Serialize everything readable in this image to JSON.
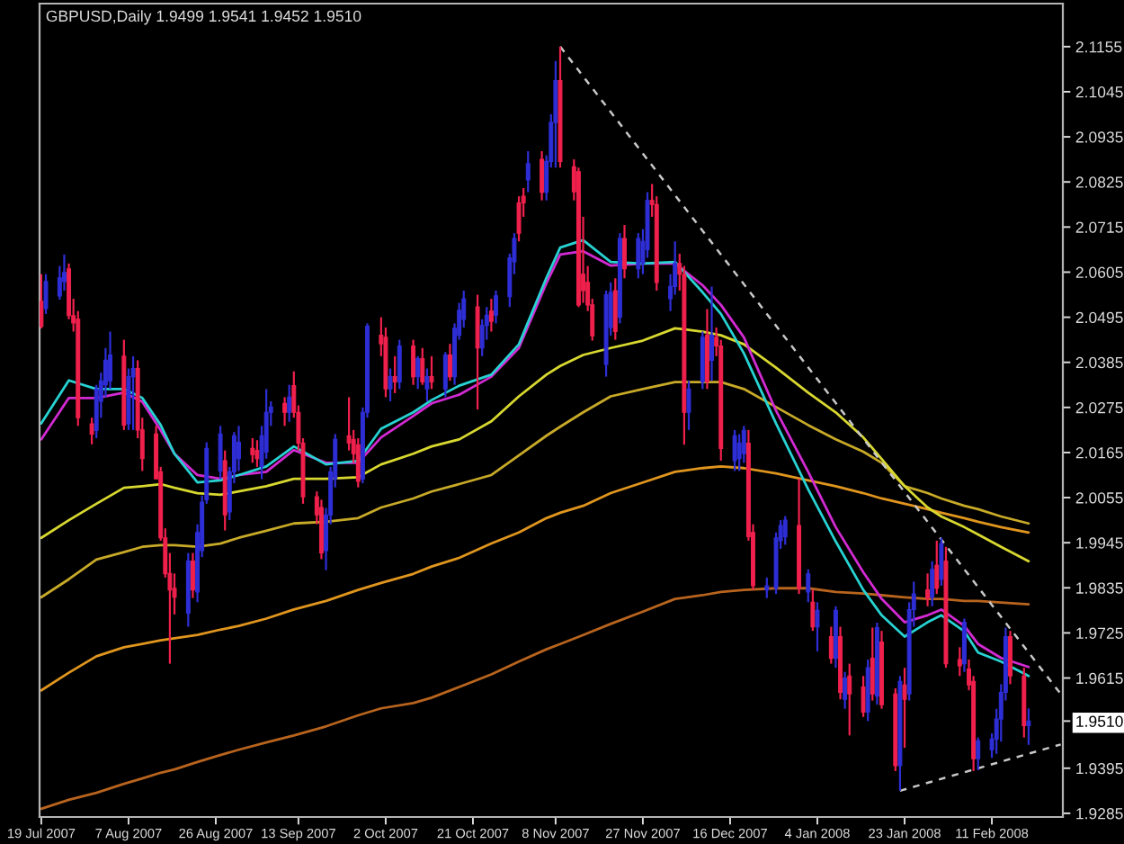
{
  "chart_data": {
    "type": "candlestick",
    "title": "GBPUSD,Daily 1.9499 1.9541 1.9452 1.9510",
    "x": [
      "2007-07-19",
      "2007-07-20",
      "2007-07-23",
      "2007-07-24",
      "2007-07-25",
      "2007-07-26",
      "2007-07-27",
      "2007-07-30",
      "2007-07-31",
      "2007-08-01",
      "2007-08-02",
      "2007-08-03",
      "2007-08-06",
      "2007-08-07",
      "2007-08-08",
      "2007-08-09",
      "2007-08-10",
      "2007-08-13",
      "2007-08-14",
      "2007-08-15",
      "2007-08-16",
      "2007-08-17",
      "2007-08-20",
      "2007-08-21",
      "2007-08-22",
      "2007-08-23",
      "2007-08-24",
      "2007-08-27",
      "2007-08-28",
      "2007-08-29",
      "2007-08-30",
      "2007-08-31",
      "2007-09-03",
      "2007-09-04",
      "2007-09-05",
      "2007-09-06",
      "2007-09-07",
      "2007-09-10",
      "2007-09-11",
      "2007-09-12",
      "2007-09-13",
      "2007-09-14",
      "2007-09-17",
      "2007-09-18",
      "2007-09-19",
      "2007-09-20",
      "2007-09-21",
      "2007-09-24",
      "2007-09-25",
      "2007-09-26",
      "2007-09-27",
      "2007-09-28",
      "2007-10-01",
      "2007-10-02",
      "2007-10-03",
      "2007-10-04",
      "2007-10-05",
      "2007-10-08",
      "2007-10-09",
      "2007-10-10",
      "2007-10-11",
      "2007-10-12",
      "2007-10-15",
      "2007-10-16",
      "2007-10-17",
      "2007-10-18",
      "2007-10-19",
      "2007-10-22",
      "2007-10-23",
      "2007-10-24",
      "2007-10-25",
      "2007-10-26",
      "2007-10-29",
      "2007-10-30",
      "2007-10-31",
      "2007-11-01",
      "2007-11-02",
      "2007-11-05",
      "2007-11-06",
      "2007-11-07",
      "2007-11-08",
      "2007-11-09",
      "2007-11-12",
      "2007-11-13",
      "2007-11-14",
      "2007-11-15",
      "2007-11-16",
      "2007-11-19",
      "2007-11-20",
      "2007-11-21",
      "2007-11-22",
      "2007-11-23",
      "2007-11-26",
      "2007-11-27",
      "2007-11-28",
      "2007-11-29",
      "2007-11-30",
      "2007-12-03",
      "2007-12-04",
      "2007-12-05",
      "2007-12-06",
      "2007-12-07",
      "2007-12-10",
      "2007-12-11",
      "2007-12-12",
      "2007-12-13",
      "2007-12-14",
      "2007-12-17",
      "2007-12-18",
      "2007-12-19",
      "2007-12-20",
      "2007-12-21",
      "2007-12-24",
      "2007-12-26",
      "2007-12-27",
      "2007-12-28",
      "2007-12-31",
      "2008-01-02",
      "2008-01-03",
      "2008-01-04",
      "2008-01-07",
      "2008-01-08",
      "2008-01-09",
      "2008-01-10",
      "2008-01-11",
      "2008-01-14",
      "2008-01-15",
      "2008-01-16",
      "2008-01-17",
      "2008-01-18",
      "2008-01-21",
      "2008-01-22",
      "2008-01-23",
      "2008-01-24",
      "2008-01-25",
      "2008-01-28",
      "2008-01-29",
      "2008-01-30",
      "2008-01-31",
      "2008-02-01",
      "2008-02-04",
      "2008-02-05",
      "2008-02-06",
      "2008-02-07",
      "2008-02-08",
      "2008-02-11",
      "2008-02-12",
      "2008-02-13",
      "2008-02-14",
      "2008-02-15",
      "2008-02-18",
      "2008-02-19"
    ],
    "ohlc": [
      [
        2.0534,
        2.06,
        2.0468,
        2.0473
      ],
      [
        2.0516,
        2.06,
        2.0503,
        2.0582
      ],
      [
        2.0547,
        2.062,
        2.0538,
        2.0591
      ],
      [
        2.0582,
        2.0648,
        2.056,
        2.0604
      ],
      [
        2.0613,
        2.0626,
        2.049,
        2.0499
      ],
      [
        2.0499,
        2.054,
        2.046,
        2.0481
      ],
      [
        2.049,
        2.051,
        2.023,
        2.025
      ],
      [
        2.0235,
        2.025,
        2.0185,
        2.021
      ],
      [
        2.0219,
        2.033,
        2.02,
        2.032
      ],
      [
        2.029,
        2.036,
        2.025,
        2.034
      ],
      [
        2.033,
        2.042,
        2.03,
        2.039
      ],
      [
        2.034,
        2.046,
        2.032,
        2.0403
      ],
      [
        2.04,
        2.044,
        2.022,
        2.0232
      ],
      [
        2.0235,
        2.037,
        2.022,
        2.035
      ],
      [
        2.035,
        2.04,
        2.022,
        2.037
      ],
      [
        2.037,
        2.039,
        2.02,
        2.022
      ],
      [
        2.022,
        2.025,
        2.012,
        2.015
      ],
      [
        2.021,
        2.023,
        2.01,
        2.0101
      ],
      [
        2.0118,
        2.013,
        1.995,
        1.9957
      ],
      [
        1.9957,
        1.998,
        1.986,
        1.9869
      ],
      [
        1.987,
        1.992,
        1.965,
        1.983
      ],
      [
        1.9834,
        1.987,
        1.977,
        1.9812
      ],
      [
        1.9773,
        1.992,
        1.974,
        1.99
      ],
      [
        1.99,
        1.992,
        1.981,
        1.983
      ],
      [
        1.9825,
        1.999,
        1.98,
        1.997
      ],
      [
        1.9926,
        2.006,
        1.991,
        2.0044
      ],
      [
        2.005,
        2.019,
        2.004,
        2.0175
      ],
      [
        2.012,
        2.023,
        2.01,
        2.021
      ],
      [
        2.0145,
        2.017,
        1.9975,
        2.0013
      ],
      [
        2.002,
        2.013,
        2.0,
        2.0118
      ],
      [
        2.0118,
        2.0215,
        2.009,
        2.0206
      ],
      [
        2.015,
        2.023,
        2.012,
        2.019
      ],
      [
        2.0175,
        2.02,
        2.014,
        2.016
      ],
      [
        2.017,
        2.0195,
        2.013,
        2.015
      ],
      [
        2.0131,
        2.023,
        2.01,
        2.0206
      ],
      [
        2.0166,
        2.032,
        2.015,
        2.0263
      ],
      [
        2.0263,
        2.029,
        2.023,
        2.0276
      ],
      [
        2.0285,
        2.03,
        2.023,
        2.0263
      ],
      [
        2.0263,
        2.033,
        2.024,
        2.03
      ],
      [
        2.0328,
        2.0363,
        2.025,
        2.0263
      ],
      [
        2.0263,
        2.028,
        2.017,
        2.0188
      ],
      [
        2.0188,
        2.02,
        2.004,
        2.0057
      ],
      [
        2.0057,
        2.007,
        1.999,
        2.0013
      ],
      [
        2.0031,
        2.005,
        1.9905,
        1.992
      ],
      [
        1.9926,
        2.003,
        1.9878,
        2.0013
      ],
      [
        2.0013,
        2.013,
        1.999,
        2.0118
      ],
      [
        2.0101,
        2.021,
        2.008,
        2.0197
      ],
      [
        2.0206,
        2.03,
        2.017,
        2.0188
      ],
      [
        2.0197,
        2.022,
        2.014,
        2.0162
      ],
      [
        2.0184,
        2.02,
        2.008,
        2.0095
      ],
      [
        2.01,
        2.0275,
        2.009,
        2.0263
      ],
      [
        2.0263,
        2.048,
        2.025,
        2.0473
      ],
      [
        2.0451,
        2.0495,
        2.04,
        2.043
      ],
      [
        2.0446,
        2.047,
        2.03,
        2.032
      ],
      [
        2.032,
        2.037,
        2.029,
        2.035
      ],
      [
        2.035,
        2.04,
        2.031,
        2.0337
      ],
      [
        2.0337,
        2.044,
        2.032,
        2.0425
      ],
      [
        2.0425,
        2.044,
        2.033,
        2.035
      ],
      [
        2.035,
        2.04,
        2.032,
        2.0394
      ],
      [
        2.0394,
        2.042,
        2.033,
        2.0337
      ],
      [
        2.032,
        2.037,
        2.029,
        2.035
      ],
      [
        2.035,
        2.04,
        2.032,
        2.0337
      ],
      [
        2.032,
        2.041,
        2.03,
        2.0403
      ],
      [
        2.0403,
        2.043,
        2.034,
        2.035
      ],
      [
        2.035,
        2.048,
        2.033,
        2.0468
      ],
      [
        2.0451,
        2.053,
        2.044,
        2.0512
      ],
      [
        2.049,
        2.056,
        2.047,
        2.054
      ],
      [
        2.052,
        2.055,
        2.027,
        2.042
      ],
      [
        2.042,
        2.049,
        2.04,
        2.0475
      ],
      [
        2.0475,
        2.052,
        2.044,
        2.05
      ],
      [
        2.051,
        2.054,
        2.046,
        2.0485
      ],
      [
        2.05,
        2.056,
        2.048,
        2.0547
      ],
      [
        2.0545,
        2.065,
        2.052,
        2.064
      ],
      [
        2.063,
        2.07,
        2.06,
        2.0687
      ],
      [
        2.0774,
        2.079,
        2.068,
        2.07
      ],
      [
        2.079,
        2.081,
        2.074,
        2.0774
      ],
      [
        2.083,
        2.09,
        2.08,
        2.087
      ],
      [
        2.088,
        2.09,
        2.078,
        2.08
      ],
      [
        2.08,
        2.089,
        2.078,
        2.0875
      ],
      [
        2.0875,
        2.099,
        2.086,
        2.097
      ],
      [
        2.097,
        2.112,
        2.086,
        2.1072
      ],
      [
        2.1072,
        2.1155,
        2.086,
        2.0875
      ],
      [
        2.0862,
        2.088,
        2.078,
        2.0801
      ],
      [
        2.085,
        2.086,
        2.052,
        2.0525
      ],
      [
        2.06,
        2.074,
        2.053,
        2.056
      ],
      [
        2.058,
        2.062,
        2.051,
        2.0525
      ],
      [
        2.0525,
        2.054,
        2.0438,
        2.045
      ],
      [
        2.038,
        2.056,
        2.035,
        2.055
      ],
      [
        2.047,
        2.058,
        2.045,
        2.0556
      ],
      [
        2.056,
        2.059,
        2.044,
        2.046
      ],
      [
        2.0495,
        2.07,
        2.048,
        2.0687
      ],
      [
        2.0687,
        2.072,
        2.059,
        2.0613
      ],
      [
        2.0613,
        2.07,
        2.059,
        2.0687
      ],
      [
        2.0626,
        2.071,
        2.06,
        2.068
      ],
      [
        2.066,
        2.08,
        2.064,
        2.078
      ],
      [
        2.078,
        2.082,
        2.074,
        2.077
      ],
      [
        2.077,
        2.079,
        2.056,
        2.058
      ],
      [
        2.054,
        2.06,
        2.051,
        2.057
      ],
      [
        2.057,
        2.068,
        2.055,
        2.0626
      ],
      [
        2.0626,
        2.065,
        2.056,
        2.06
      ],
      [
        2.06,
        2.062,
        2.0184,
        2.0263
      ],
      [
        2.0263,
        2.034,
        2.022,
        2.032
      ],
      [
        2.0337,
        2.046,
        2.032,
        2.0446
      ],
      [
        2.0451,
        2.0515,
        2.032,
        2.0337
      ],
      [
        2.039,
        2.057,
        2.034,
        2.0451
      ],
      [
        2.0446,
        2.047,
        2.04,
        2.0425
      ],
      [
        2.0425,
        2.044,
        2.0145,
        2.0175
      ],
      [
        2.0145,
        2.022,
        2.012,
        2.0206
      ],
      [
        2.015,
        2.021,
        2.012,
        2.0188
      ],
      [
        2.0162,
        2.023,
        2.014,
        2.0219
      ],
      [
        2.0188,
        2.022,
        1.995,
        1.996
      ],
      [
        1.997,
        1.999,
        1.983,
        1.984
      ],
      [
        1.983,
        1.986,
        1.981,
        1.984
      ],
      [
        1.9834,
        1.997,
        1.982,
        1.9957
      ],
      [
        1.995,
        2.0,
        1.993,
        1.9987
      ],
      [
        1.996,
        2.001,
        1.994,
        2.0
      ],
      [
        1.9987,
        2.0101,
        1.982,
        1.9834
      ],
      [
        1.9825,
        1.988,
        1.98,
        1.9869
      ],
      [
        1.98,
        1.983,
        1.973,
        1.974
      ],
      [
        1.974,
        1.98,
        1.968,
        1.978
      ],
      [
        1.9716,
        1.974,
        1.965,
        1.9663
      ],
      [
        1.9663,
        1.979,
        1.964,
        1.978
      ],
      [
        1.9716,
        1.974,
        1.9563,
        1.958
      ],
      [
        1.9563,
        1.963,
        1.954,
        1.9615
      ],
      [
        1.962,
        1.965,
        1.9475,
        1.9576
      ],
      [
        1.9593,
        1.962,
        1.952,
        1.9532
      ],
      [
        1.9532,
        1.966,
        1.951,
        1.964
      ],
      [
        1.9663,
        1.9738,
        1.956,
        1.9576
      ],
      [
        1.9571,
        1.975,
        1.955,
        1.9738
      ],
      [
        1.9703,
        1.973,
        1.954,
        1.955
      ],
      [
        1.9576,
        1.959,
        1.9388,
        1.9401
      ],
      [
        1.9401,
        1.962,
        1.934,
        1.9607
      ],
      [
        1.9598,
        1.964,
        1.9445,
        1.9563
      ],
      [
        1.9576,
        1.98,
        1.956,
        1.9782
      ],
      [
        1.9782,
        1.985,
        1.974,
        1.982
      ],
      [
        1.983,
        1.987,
        1.979,
        1.981
      ],
      [
        1.9812,
        1.99,
        1.979,
        1.988
      ],
      [
        1.989,
        1.995,
        1.982,
        1.9834
      ],
      [
        1.9856,
        1.9957,
        1.984,
        1.9943
      ],
      [
        1.99,
        1.9935,
        1.964,
        1.965
      ],
      [
        1.966,
        1.969,
        1.962,
        1.9645
      ],
      [
        1.965,
        1.976,
        1.963,
        1.9751
      ],
      [
        1.9637,
        1.966,
        1.9585,
        1.9598
      ],
      [
        1.9607,
        1.962,
        1.9388,
        1.9418
      ],
      [
        1.9418,
        1.947,
        1.939,
        1.9462
      ],
      [
        1.944,
        1.948,
        1.942,
        1.9466
      ],
      [
        1.9466,
        1.954,
        1.943,
        1.9515
      ],
      [
        1.9515,
        1.96,
        1.946,
        1.958
      ],
      [
        1.958,
        1.9738,
        1.956,
        1.9716
      ],
      [
        1.9716,
        1.973,
        1.96,
        1.962
      ],
      [
        1.962,
        1.964,
        1.947,
        1.9499
      ],
      [
        1.9499,
        1.9541,
        1.9452,
        1.951
      ]
    ],
    "colors": [
      "#f0204c",
      "#2e2ed6",
      "#2e2ed6",
      "#2e2ed6",
      "#f0204c",
      "#f0204c",
      "#f0204c",
      "#f0204c",
      "#2e2ed6",
      "#2e2ed6",
      "#2e2ed6",
      "#2e2ed6",
      "#f0204c",
      "#2e2ed6",
      "#2e2ed6",
      "#f0204c",
      "#f0204c",
      "#f0204c",
      "#f0204c",
      "#f0204c",
      "#f0204c",
      "#f0204c",
      "#2e2ed6",
      "#f0204c",
      "#2e2ed6",
      "#2e2ed6",
      "#2e2ed6",
      "#2e2ed6",
      "#f0204c",
      "#2e2ed6",
      "#2e2ed6",
      "#2e2ed6",
      "#f0204c",
      "#f0204c",
      "#2e2ed6",
      "#2e2ed6",
      "#2e2ed6",
      "#f0204c",
      "#2e2ed6",
      "#f0204c",
      "#f0204c",
      "#f0204c",
      "#f0204c",
      "#f0204c",
      "#2e2ed6",
      "#2e2ed6",
      "#2e2ed6",
      "#f0204c",
      "#f0204c",
      "#f0204c",
      "#2e2ed6",
      "#2e2ed6",
      "#f0204c",
      "#f0204c",
      "#2e2ed6",
      "#f0204c",
      "#2e2ed6",
      "#f0204c",
      "#2e2ed6",
      "#f0204c",
      "#2e2ed6",
      "#f0204c",
      "#2e2ed6",
      "#f0204c",
      "#2e2ed6",
      "#2e2ed6",
      "#2e2ed6",
      "#f0204c",
      "#2e2ed6",
      "#2e2ed6",
      "#f0204c",
      "#2e2ed6",
      "#2e2ed6",
      "#2e2ed6",
      "#f0204c",
      "#f0204c",
      "#2e2ed6",
      "#f0204c",
      "#2e2ed6",
      "#2e2ed6",
      "#2e2ed6",
      "#f0204c",
      "#f0204c",
      "#f0204c",
      "#f0204c",
      "#f0204c",
      "#f0204c",
      "#2e2ed6",
      "#2e2ed6",
      "#f0204c",
      "#2e2ed6",
      "#f0204c",
      "#2e2ed6",
      "#2e2ed6",
      "#2e2ed6",
      "#f0204c",
      "#f0204c",
      "#2e2ed6",
      "#2e2ed6",
      "#f0204c",
      "#f0204c",
      "#2e2ed6",
      "#2e2ed6",
      "#f0204c",
      "#2e2ed6",
      "#f0204c",
      "#f0204c",
      "#2e2ed6",
      "#2e2ed6",
      "#2e2ed6",
      "#f0204c",
      "#f0204c",
      "#2e2ed6",
      "#2e2ed6",
      "#2e2ed6",
      "#2e2ed6",
      "#f0204c",
      "#2e2ed6",
      "#f0204c",
      "#2e2ed6",
      "#f0204c",
      "#2e2ed6",
      "#f0204c",
      "#2e2ed6",
      "#f0204c",
      "#f0204c",
      "#2e2ed6",
      "#f0204c",
      "#2e2ed6",
      "#f0204c",
      "#f0204c",
      "#2e2ed6",
      "#f0204c",
      "#2e2ed6",
      "#2e2ed6",
      "#f0204c",
      "#2e2ed6",
      "#f0204c",
      "#2e2ed6",
      "#f0204c",
      "#f0204c",
      "#2e2ed6",
      "#f0204c",
      "#f0204c",
      "#2e2ed6",
      "#2e2ed6",
      "#2e2ed6",
      "#2e2ed6",
      "#2e2ed6",
      "#f0204c",
      "#f0204c",
      "#2e2ed6"
    ],
    "series": [
      {
        "type": "line",
        "color": "#b8641e",
        "x": [
          "2007-07-19",
          "2007-07-25",
          "2007-07-31",
          "2007-08-06",
          "2007-08-10",
          "2007-08-14",
          "2007-08-17",
          "2007-08-22",
          "2007-08-27",
          "2007-08-31",
          "2007-09-06",
          "2007-09-12",
          "2007-09-19",
          "2007-09-26",
          "2007-10-01",
          "2007-10-08",
          "2007-10-12",
          "2007-10-18",
          "2007-10-25",
          "2007-10-31",
          "2007-11-06",
          "2007-11-09",
          "2007-11-14",
          "2007-11-20",
          "2007-11-27",
          "2007-12-04",
          "2007-12-10",
          "2007-12-14",
          "2007-12-19",
          "2007-12-26",
          "2008-01-02",
          "2008-01-08",
          "2008-01-14",
          "2008-01-18",
          "2008-01-23",
          "2008-01-28",
          "2008-01-31",
          "2008-02-05",
          "2008-02-08",
          "2008-02-13",
          "2008-02-19"
        ],
        "values": [
          1.9296,
          1.9318,
          1.9335,
          1.9357,
          1.937,
          1.9384,
          1.9392,
          1.941,
          1.9427,
          1.944,
          1.9458,
          1.9475,
          1.9497,
          1.9524,
          1.9541,
          1.9554,
          1.9567,
          1.9593,
          1.9624,
          1.9655,
          1.9685,
          1.9698,
          1.972,
          1.9747,
          1.9777,
          1.9808,
          1.9817,
          1.9825,
          1.983,
          1.9834,
          1.9834,
          1.9825,
          1.9821,
          1.9817,
          1.9812,
          1.9808,
          1.9808,
          1.9803,
          1.9803,
          1.9799,
          1.9795
        ]
      },
      {
        "type": "line",
        "color": "#e0961e",
        "x": [
          "2007-07-19",
          "2007-07-25",
          "2007-07-31",
          "2007-08-06",
          "2007-08-10",
          "2007-08-14",
          "2007-08-17",
          "2007-08-22",
          "2007-08-27",
          "2007-08-31",
          "2007-09-06",
          "2007-09-12",
          "2007-09-19",
          "2007-09-26",
          "2007-10-01",
          "2007-10-08",
          "2007-10-12",
          "2007-10-18",
          "2007-10-25",
          "2007-10-31",
          "2007-11-06",
          "2007-11-09",
          "2007-11-14",
          "2007-11-20",
          "2007-11-27",
          "2007-12-04",
          "2007-12-10",
          "2007-12-14",
          "2007-12-19",
          "2007-12-26",
          "2008-01-02",
          "2008-01-08",
          "2008-01-14",
          "2008-01-18",
          "2008-01-23",
          "2008-01-28",
          "2008-01-31",
          "2008-02-05",
          "2008-02-08",
          "2008-02-13",
          "2008-02-19"
        ],
        "values": [
          1.9585,
          1.9628,
          1.9668,
          1.969,
          1.9698,
          1.9707,
          1.9712,
          1.972,
          1.9733,
          1.9742,
          1.976,
          1.9782,
          1.9803,
          1.983,
          1.9847,
          1.9869,
          1.9887,
          1.9908,
          1.9943,
          1.997,
          2.0005,
          2.0018,
          2.0035,
          2.0066,
          2.0092,
          2.0118,
          2.0127,
          2.0131,
          2.0127,
          2.0114,
          2.0097,
          2.0083,
          2.0066,
          2.0053,
          2.004,
          2.0027,
          2.0018,
          2.0005,
          1.9996,
          1.9983,
          1.997
        ]
      },
      {
        "type": "line",
        "color": "#c8aa28",
        "x": [
          "2007-07-19",
          "2007-07-25",
          "2007-07-31",
          "2007-08-06",
          "2007-08-10",
          "2007-08-14",
          "2007-08-17",
          "2007-08-22",
          "2007-08-27",
          "2007-08-31",
          "2007-09-06",
          "2007-09-12",
          "2007-09-19",
          "2007-09-26",
          "2007-10-01",
          "2007-10-08",
          "2007-10-12",
          "2007-10-18",
          "2007-10-25",
          "2007-10-31",
          "2007-11-06",
          "2007-11-09",
          "2007-11-14",
          "2007-11-20",
          "2007-11-27",
          "2007-12-04",
          "2007-12-10",
          "2007-12-14",
          "2007-12-19",
          "2007-12-26",
          "2008-01-02",
          "2008-01-08",
          "2008-01-14",
          "2008-01-18",
          "2008-01-23",
          "2008-01-28",
          "2008-01-31",
          "2008-02-05",
          "2008-02-08",
          "2008-02-13",
          "2008-02-19"
        ],
        "values": [
          1.9812,
          1.9856,
          1.9904,
          1.9922,
          1.9935,
          1.9939,
          1.9939,
          1.9935,
          1.9943,
          1.9957,
          1.9974,
          1.9992,
          1.9996,
          2.0005,
          2.0031,
          2.0053,
          2.007,
          2.0088,
          2.011,
          2.0158,
          2.0206,
          2.0228,
          2.0263,
          2.0302,
          2.032,
          2.0337,
          2.0337,
          2.0337,
          2.032,
          2.0276,
          2.0232,
          2.0197,
          2.0167,
          2.014,
          2.0083,
          2.0066,
          2.0053,
          2.0035,
          2.0027,
          2.0009,
          1.9992
        ]
      },
      {
        "type": "line",
        "color": "#d8d830",
        "x": [
          "2007-07-19",
          "2007-07-25",
          "2007-07-31",
          "2007-08-06",
          "2007-08-10",
          "2007-08-14",
          "2007-08-17",
          "2007-08-22",
          "2007-08-27",
          "2007-08-31",
          "2007-09-06",
          "2007-09-12",
          "2007-09-19",
          "2007-09-26",
          "2007-10-01",
          "2007-10-08",
          "2007-10-12",
          "2007-10-18",
          "2007-10-25",
          "2007-10-31",
          "2007-11-06",
          "2007-11-09",
          "2007-11-14",
          "2007-11-20",
          "2007-11-27",
          "2007-12-04",
          "2007-12-10",
          "2007-12-14",
          "2007-12-19",
          "2007-12-26",
          "2008-01-02",
          "2008-01-08",
          "2008-01-14",
          "2008-01-18",
          "2008-01-23",
          "2008-01-28",
          "2008-01-31",
          "2008-02-05",
          "2008-02-08",
          "2008-02-13",
          "2008-02-19"
        ],
        "values": [
          1.9957,
          2.0,
          2.004,
          2.0079,
          2.0083,
          2.0088,
          2.0079,
          2.0066,
          2.0062,
          2.007,
          2.0083,
          2.0101,
          2.0101,
          2.0105,
          2.0136,
          2.0162,
          2.018,
          2.0197,
          2.0241,
          2.0302,
          2.0355,
          2.0376,
          2.0403,
          2.042,
          2.0438,
          2.0468,
          2.046,
          2.0451,
          2.0429,
          2.0372,
          2.0311,
          2.0263,
          2.0202,
          2.0149,
          2.0083,
          2.0031,
          2.0009,
          1.9983,
          1.9965,
          1.9935,
          1.99
        ]
      },
      {
        "type": "line",
        "color": "#d22ad2",
        "x": [
          "2007-07-19",
          "2007-07-25",
          "2007-07-31",
          "2007-08-06",
          "2007-08-10",
          "2007-08-14",
          "2007-08-17",
          "2007-08-22",
          "2007-08-27",
          "2007-08-31",
          "2007-09-06",
          "2007-09-12",
          "2007-09-19",
          "2007-09-26",
          "2007-10-01",
          "2007-10-08",
          "2007-10-12",
          "2007-10-18",
          "2007-10-25",
          "2007-10-31",
          "2007-11-06",
          "2007-11-09",
          "2007-11-14",
          "2007-11-20",
          "2007-11-27",
          "2007-12-04",
          "2007-12-10",
          "2007-12-14",
          "2007-12-19",
          "2007-12-26",
          "2008-01-02",
          "2008-01-08",
          "2008-01-14",
          "2008-01-18",
          "2008-01-23",
          "2008-01-28",
          "2008-01-31",
          "2008-02-05",
          "2008-02-08",
          "2008-02-13",
          "2008-02-19"
        ],
        "values": [
          2.0197,
          2.0298,
          2.0298,
          2.0311,
          2.0289,
          2.0219,
          2.0162,
          2.011,
          2.0101,
          2.011,
          2.0118,
          2.0171,
          2.014,
          2.014,
          2.0202,
          2.0254,
          2.0285,
          2.0306,
          2.035,
          2.042,
          2.0578,
          2.0648,
          2.0656,
          2.0621,
          2.0626,
          2.0626,
          2.0573,
          2.0525,
          2.0446,
          2.0267,
          2.0118,
          1.9983,
          1.9873,
          1.9808,
          1.9751,
          1.9768,
          1.9782,
          1.9742,
          1.9698,
          1.9664,
          1.9642
        ]
      },
      {
        "type": "line",
        "color": "#28d2d2",
        "x": [
          "2007-07-19",
          "2007-07-25",
          "2007-07-31",
          "2007-08-06",
          "2007-08-10",
          "2007-08-14",
          "2007-08-17",
          "2007-08-22",
          "2007-08-27",
          "2007-08-31",
          "2007-09-06",
          "2007-09-12",
          "2007-09-19",
          "2007-09-26",
          "2007-10-01",
          "2007-10-08",
          "2007-10-12",
          "2007-10-18",
          "2007-10-25",
          "2007-10-31",
          "2007-11-06",
          "2007-11-09",
          "2007-11-14",
          "2007-11-20",
          "2007-11-27",
          "2007-12-04",
          "2007-12-10",
          "2007-12-14",
          "2007-12-19",
          "2007-12-26",
          "2008-01-02",
          "2008-01-08",
          "2008-01-14",
          "2008-01-18",
          "2008-01-23",
          "2008-01-28",
          "2008-01-31",
          "2008-02-05",
          "2008-02-08",
          "2008-02-13",
          "2008-02-19"
        ],
        "values": [
          2.0236,
          2.0341,
          2.032,
          2.032,
          2.0298,
          2.0232,
          2.0162,
          2.0092,
          2.0097,
          2.011,
          2.0131,
          2.018,
          2.0136,
          2.0145,
          2.0223,
          2.0263,
          2.0293,
          2.0328,
          2.0355,
          2.0429,
          2.0591,
          2.0665,
          2.0683,
          2.063,
          2.0626,
          2.063,
          2.0556,
          2.0503,
          2.0407,
          2.0236,
          2.0075,
          1.9948,
          1.983,
          1.9768,
          1.9716,
          1.9751,
          1.9768,
          1.9729,
          1.9677,
          1.9655,
          1.962
        ]
      },
      {
        "type": "line",
        "color": "#c8c8c8",
        "line_style": "dashed",
        "x": [
          "2007-11-09",
          "2008-02-26"
        ],
        "values": [
          2.1155,
          1.9576
        ]
      },
      {
        "type": "line",
        "color": "#c8c8c8",
        "line_style": "dashed",
        "x": [
          "2008-01-22",
          "2008-02-26"
        ],
        "values": [
          1.934,
          1.9453
        ]
      }
    ],
    "xlim": [
      "2007-07-18T15:00",
      "2008-02-26T11:00"
    ],
    "ylim": [
      1.9276,
      2.126
    ],
    "xticks": [
      {
        "value": "2007-07-19",
        "label": "19 Jul 2007"
      },
      {
        "value": "2007-08-07",
        "label": "7 Aug 2007"
      },
      {
        "value": "2007-08-26",
        "label": "26 Aug 2007"
      },
      {
        "value": "2007-09-13",
        "label": "13 Sep 2007"
      },
      {
        "value": "2007-10-02",
        "label": "2 Oct 2007"
      },
      {
        "value": "2007-10-21",
        "label": "21 Oct 2007"
      },
      {
        "value": "2007-11-08",
        "label": "8 Nov 2007"
      },
      {
        "value": "2007-11-27",
        "label": "27 Nov 2007"
      },
      {
        "value": "2007-12-16",
        "label": "16 Dec 2007"
      },
      {
        "value": "2008-01-04",
        "label": "4 Jan 2008"
      },
      {
        "value": "2008-01-23",
        "label": "23 Jan 2008"
      },
      {
        "value": "2008-02-11",
        "label": "11 Feb 2008"
      }
    ],
    "yticks": [
      2.1155,
      2.1045,
      2.0935,
      2.0825,
      2.0715,
      2.0605,
      2.0495,
      2.0385,
      2.0275,
      2.0165,
      2.0055,
      1.9945,
      1.9835,
      1.9725,
      1.9615,
      {
        "value": 1.951,
        "label": "1.9510"
      },
      1.9395,
      1.9285
    ]
  }
}
